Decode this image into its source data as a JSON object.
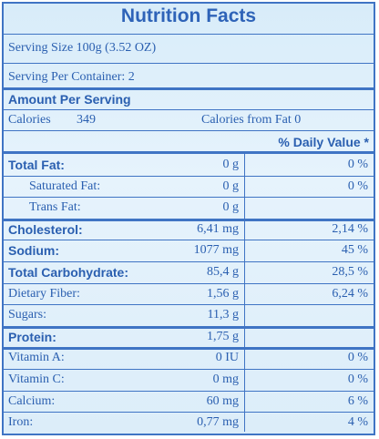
{
  "title": "Nutrition Facts",
  "serving_size": "Serving Size 100g (3.52 OZ)",
  "servings_per_container": "Serving Per Container: 2",
  "amount_per_serving": "Amount Per Serving",
  "calories_label": "Calories",
  "calories_value": "349",
  "calories_from_fat": "Calories from Fat  0",
  "daily_value_header": "% Daily Value *",
  "rows": [
    {
      "label": "Total Fat:",
      "amount": "0 g",
      "dv": "0 %",
      "bold": true,
      "indent": false
    },
    {
      "label": "Saturated Fat:",
      "amount": "0 g",
      "dv": "0 %",
      "bold": false,
      "indent": true
    },
    {
      "label": "Trans Fat:",
      "amount": "0 g",
      "dv": "",
      "bold": false,
      "indent": true
    },
    {
      "label": "Cholesterol:",
      "amount": "6,41 mg",
      "dv": "2,14 %",
      "bold": true,
      "indent": false
    },
    {
      "label": "Sodium:",
      "amount": "1077 mg",
      "dv": "45 %",
      "bold": true,
      "indent": false
    },
    {
      "label": "Total Carbohydrate:",
      "amount": "85,4 g",
      "dv": "28,5 %",
      "bold": true,
      "indent": false
    },
    {
      "label": "Dietary Fiber:",
      "amount": "1,56 g",
      "dv": "6,24 %",
      "bold": false,
      "indent": false
    },
    {
      "label": "Sugars:",
      "amount": "11,3 g",
      "dv": "",
      "bold": false,
      "indent": false
    },
    {
      "label": "Protein:",
      "amount": "1,75 g",
      "dv": "",
      "bold": true,
      "indent": false
    },
    {
      "label": "Vitamin A:",
      "amount": "0  IU",
      "dv": "0 %",
      "bold": false,
      "indent": false
    },
    {
      "label": "Vitamin C:",
      "amount": "0 mg",
      "dv": "0 %",
      "bold": false,
      "indent": false
    },
    {
      "label": "Calcium:",
      "amount": "60 mg",
      "dv": "6 %",
      "bold": false,
      "indent": false
    },
    {
      "label": "Iron:",
      "amount": "0,77 mg",
      "dv": "4 %",
      "bold": false,
      "indent": false
    }
  ]
}
